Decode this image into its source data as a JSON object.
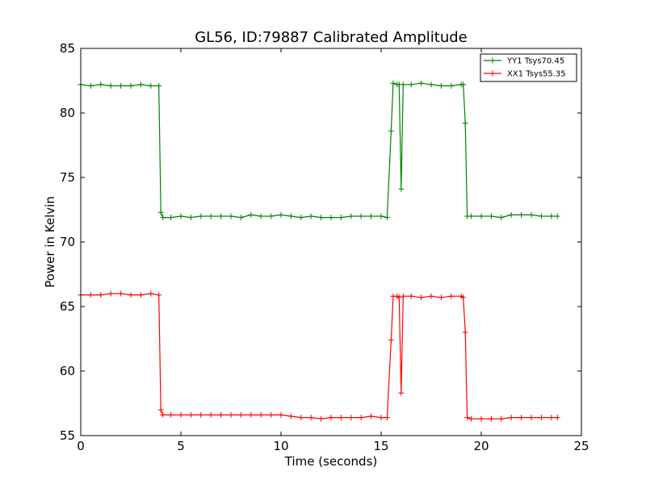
{
  "chart_data": {
    "type": "line",
    "title": "GL56, ID:79887 Calibrated Amplitude",
    "xlabel": "Time (seconds)",
    "ylabel": "Power in Kelvin",
    "xlim": [
      0,
      25
    ],
    "ylim": [
      55,
      85
    ],
    "xticks": [
      0,
      5,
      10,
      15,
      20,
      25
    ],
    "yticks": [
      55,
      60,
      65,
      70,
      75,
      80,
      85
    ],
    "grid": false,
    "legend_position": "top-right",
    "marker": "plus",
    "series": [
      {
        "name": "YY1 Tsys70.45",
        "color": "#008000",
        "points": [
          [
            0.0,
            82.2
          ],
          [
            0.5,
            82.1
          ],
          [
            1.0,
            82.2
          ],
          [
            1.5,
            82.1
          ],
          [
            2.0,
            82.1
          ],
          [
            2.5,
            82.1
          ],
          [
            3.0,
            82.2
          ],
          [
            3.5,
            82.1
          ],
          [
            3.9,
            82.1
          ],
          [
            4.0,
            72.3
          ],
          [
            4.1,
            71.9
          ],
          [
            4.5,
            71.9
          ],
          [
            5.0,
            72.0
          ],
          [
            5.5,
            71.9
          ],
          [
            6.0,
            72.0
          ],
          [
            6.5,
            72.0
          ],
          [
            7.0,
            72.0
          ],
          [
            7.5,
            72.0
          ],
          [
            8.0,
            71.9
          ],
          [
            8.5,
            72.1
          ],
          [
            9.0,
            72.0
          ],
          [
            9.5,
            72.0
          ],
          [
            10.0,
            72.1
          ],
          [
            10.5,
            72.0
          ],
          [
            11.0,
            71.9
          ],
          [
            11.5,
            72.0
          ],
          [
            12.0,
            71.9
          ],
          [
            12.5,
            71.9
          ],
          [
            13.0,
            71.9
          ],
          [
            13.5,
            72.0
          ],
          [
            14.0,
            72.0
          ],
          [
            14.5,
            72.0
          ],
          [
            15.0,
            72.0
          ],
          [
            15.3,
            71.9
          ],
          [
            15.5,
            78.6
          ],
          [
            15.6,
            82.3
          ],
          [
            15.8,
            82.2
          ],
          [
            15.9,
            82.2
          ],
          [
            16.0,
            74.1
          ],
          [
            16.1,
            82.2
          ],
          [
            16.5,
            82.2
          ],
          [
            17.0,
            82.3
          ],
          [
            17.5,
            82.2
          ],
          [
            18.0,
            82.1
          ],
          [
            18.5,
            82.1
          ],
          [
            19.0,
            82.2
          ],
          [
            19.1,
            82.2
          ],
          [
            19.2,
            79.2
          ],
          [
            19.3,
            72.0
          ],
          [
            19.5,
            72.0
          ],
          [
            20.0,
            72.0
          ],
          [
            20.5,
            72.0
          ],
          [
            21.0,
            71.9
          ],
          [
            21.5,
            72.1
          ],
          [
            22.0,
            72.1
          ],
          [
            22.5,
            72.1
          ],
          [
            23.0,
            72.0
          ],
          [
            23.5,
            72.0
          ],
          [
            23.8,
            72.0
          ]
        ]
      },
      {
        "name": "XX1 Tsys55.35",
        "color": "#ff0000",
        "points": [
          [
            0.0,
            65.9
          ],
          [
            0.5,
            65.9
          ],
          [
            1.0,
            65.9
          ],
          [
            1.5,
            66.0
          ],
          [
            2.0,
            66.0
          ],
          [
            2.5,
            65.9
          ],
          [
            3.0,
            65.9
          ],
          [
            3.5,
            66.0
          ],
          [
            3.9,
            65.9
          ],
          [
            4.0,
            57.0
          ],
          [
            4.1,
            56.6
          ],
          [
            4.5,
            56.6
          ],
          [
            5.0,
            56.6
          ],
          [
            5.5,
            56.6
          ],
          [
            6.0,
            56.6
          ],
          [
            6.5,
            56.6
          ],
          [
            7.0,
            56.6
          ],
          [
            7.5,
            56.6
          ],
          [
            8.0,
            56.6
          ],
          [
            8.5,
            56.6
          ],
          [
            9.0,
            56.6
          ],
          [
            9.5,
            56.6
          ],
          [
            10.0,
            56.6
          ],
          [
            10.5,
            56.5
          ],
          [
            11.0,
            56.4
          ],
          [
            11.5,
            56.4
          ],
          [
            12.0,
            56.3
          ],
          [
            12.5,
            56.4
          ],
          [
            13.0,
            56.4
          ],
          [
            13.5,
            56.4
          ],
          [
            14.0,
            56.4
          ],
          [
            14.5,
            56.5
          ],
          [
            15.0,
            56.4
          ],
          [
            15.3,
            56.4
          ],
          [
            15.5,
            62.4
          ],
          [
            15.6,
            65.8
          ],
          [
            15.8,
            65.8
          ],
          [
            15.9,
            65.7
          ],
          [
            16.0,
            58.3
          ],
          [
            16.1,
            65.8
          ],
          [
            16.5,
            65.8
          ],
          [
            17.0,
            65.7
          ],
          [
            17.5,
            65.8
          ],
          [
            18.0,
            65.7
          ],
          [
            18.5,
            65.8
          ],
          [
            19.0,
            65.8
          ],
          [
            19.1,
            65.7
          ],
          [
            19.2,
            63.0
          ],
          [
            19.3,
            56.4
          ],
          [
            19.5,
            56.3
          ],
          [
            20.0,
            56.3
          ],
          [
            20.5,
            56.3
          ],
          [
            21.0,
            56.3
          ],
          [
            21.5,
            56.4
          ],
          [
            22.0,
            56.4
          ],
          [
            22.5,
            56.4
          ],
          [
            23.0,
            56.4
          ],
          [
            23.5,
            56.4
          ],
          [
            23.8,
            56.4
          ]
        ]
      }
    ]
  }
}
